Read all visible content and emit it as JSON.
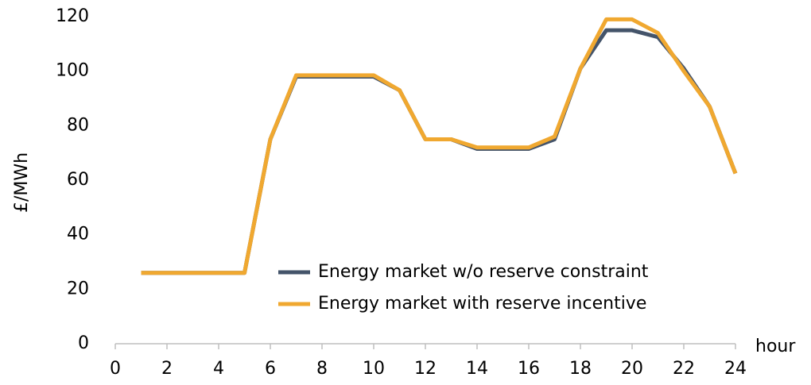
{
  "chart_data": {
    "type": "line",
    "x_label": "hour",
    "y_label": "£/MWh",
    "x": [
      1,
      2,
      3,
      4,
      5,
      6,
      7,
      8,
      9,
      10,
      11,
      12,
      13,
      14,
      15,
      16,
      17,
      18,
      19,
      20,
      21,
      22,
      23,
      24
    ],
    "series": [
      {
        "name": "Energy market w/o reserve constraint",
        "color": "#44546a",
        "values": [
          26,
          26,
          26,
          26,
          26,
          75,
          98,
          98,
          98,
          98,
          93,
          75,
          75,
          71.5,
          71.5,
          71.5,
          75,
          101,
          115,
          115,
          112.5,
          101,
          87,
          62.5
        ]
      },
      {
        "name": "Energy market with reserve incentive",
        "color": "#f0a830",
        "values": [
          26,
          26,
          26,
          26,
          26,
          75,
          98.5,
          98.5,
          98.5,
          98.5,
          93,
          75,
          75,
          72,
          72,
          72,
          76,
          101,
          119,
          119,
          114,
          100,
          87,
          62.5
        ]
      }
    ],
    "xlim": [
      0,
      24
    ],
    "xticks": [
      0,
      2,
      4,
      6,
      8,
      10,
      12,
      14,
      16,
      18,
      20,
      22,
      24
    ],
    "ylim": [
      0,
      120
    ],
    "yticks": [
      0,
      20,
      40,
      60,
      80,
      100,
      120
    ],
    "grid": false,
    "legend": "lower right"
  }
}
